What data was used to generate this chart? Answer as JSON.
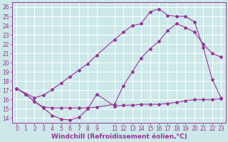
{
  "background_color": "#cce8e8",
  "grid_color": "#ffffff",
  "line_color": "#993399",
  "xlabel": "Windchill (Refroidissement éolien,°C)",
  "xlabel_fontsize": 6.5,
  "tick_fontsize": 5.5,
  "xlim": [
    -0.5,
    23.5
  ],
  "ylim": [
    13.5,
    26.5
  ],
  "yticks": [
    14,
    15,
    16,
    17,
    18,
    19,
    20,
    21,
    22,
    23,
    24,
    25,
    26
  ],
  "xticks": [
    0,
    1,
    2,
    3,
    4,
    5,
    6,
    7,
    8,
    9,
    11,
    12,
    13,
    14,
    15,
    16,
    17,
    18,
    19,
    20,
    21,
    22,
    23
  ],
  "line1_x": [
    0,
    1,
    2,
    3,
    4,
    5,
    6,
    7,
    8,
    9,
    11,
    12,
    13,
    14,
    15,
    16,
    17,
    18,
    19,
    20,
    21,
    22,
    23
  ],
  "line1_y": [
    17.2,
    16.6,
    15.8,
    15.1,
    14.3,
    13.9,
    13.8,
    14.1,
    15.0,
    16.6,
    15.3,
    15.4,
    15.4,
    15.5,
    15.5,
    15.5,
    15.6,
    15.7,
    15.9,
    16.0,
    16.0,
    16.0,
    16.1
  ],
  "line2_x": [
    0,
    1,
    2,
    3,
    4,
    5,
    6,
    7,
    8,
    9,
    11,
    12,
    13,
    14,
    15,
    16,
    17,
    18,
    19,
    20,
    21,
    22,
    23
  ],
  "line2_y": [
    17.2,
    16.6,
    15.8,
    15.2,
    15.1,
    15.1,
    15.1,
    15.1,
    15.1,
    15.2,
    15.5,
    17.5,
    19.0,
    20.5,
    21.5,
    22.3,
    23.5,
    24.2,
    23.8,
    23.3,
    22.0,
    21.0,
    20.6
  ],
  "line3_x": [
    0,
    2,
    3,
    4,
    5,
    6,
    7,
    8,
    9,
    11,
    12,
    13,
    14,
    15,
    16,
    17,
    18,
    19,
    20,
    21,
    22,
    23
  ],
  "line3_y": [
    17.2,
    16.2,
    16.5,
    17.1,
    17.8,
    18.5,
    19.2,
    19.9,
    20.8,
    22.5,
    23.3,
    24.0,
    24.2,
    25.5,
    25.8,
    25.1,
    25.0,
    25.0,
    24.4,
    21.6,
    18.2,
    16.2
  ]
}
